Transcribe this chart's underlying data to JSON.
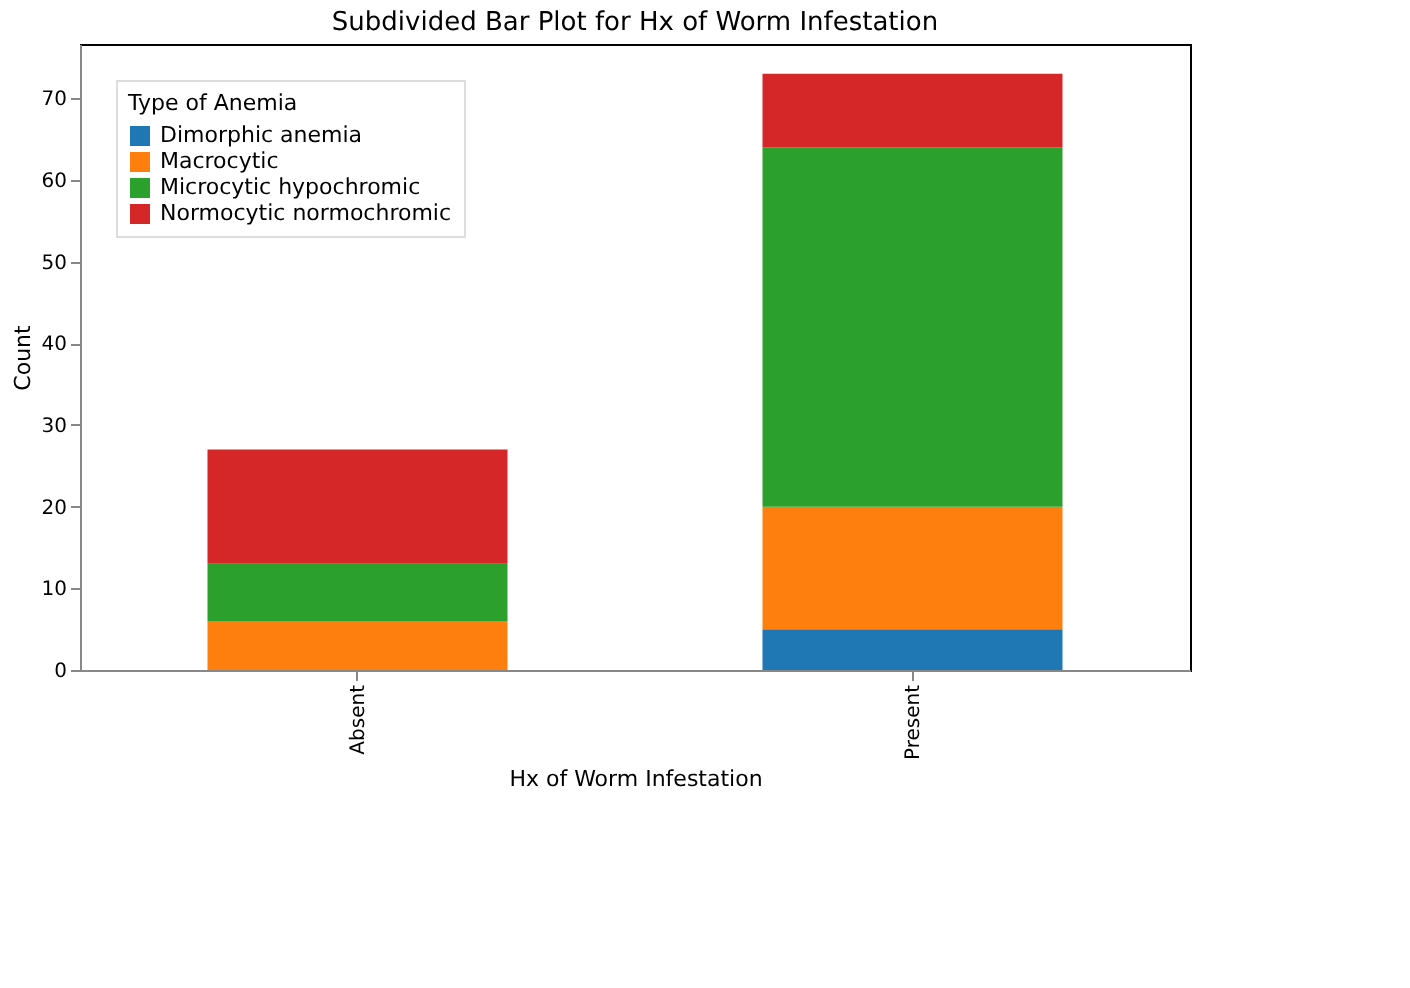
{
  "chart_data": {
    "type": "bar",
    "title": "Subdivided Bar Plot for Hx of Worm Infestation",
    "xlabel": "Hx of Worm Infestation",
    "ylabel": "Count",
    "legend_title": "Type of Anemia",
    "legend": "top left",
    "stacked": true,
    "grid": false,
    "categories": [
      "Absent",
      "Present"
    ],
    "series": [
      {
        "name": "Dimorphic anemia",
        "color": "#1f77b4",
        "values": [
          0,
          5
        ]
      },
      {
        "name": "Macrocytic",
        "color": "#ff7f0e",
        "values": [
          6,
          15
        ]
      },
      {
        "name": "Microcytic hypochromic",
        "color": "#2ca02c",
        "values": [
          7,
          44
        ]
      },
      {
        "name": "Normocytic normochromic",
        "color": "#d62728",
        "values": [
          14,
          9
        ]
      }
    ],
    "ylim": [
      0,
      76.65
    ],
    "yticks": [
      0,
      10,
      20,
      30,
      40,
      50,
      60,
      70
    ]
  }
}
